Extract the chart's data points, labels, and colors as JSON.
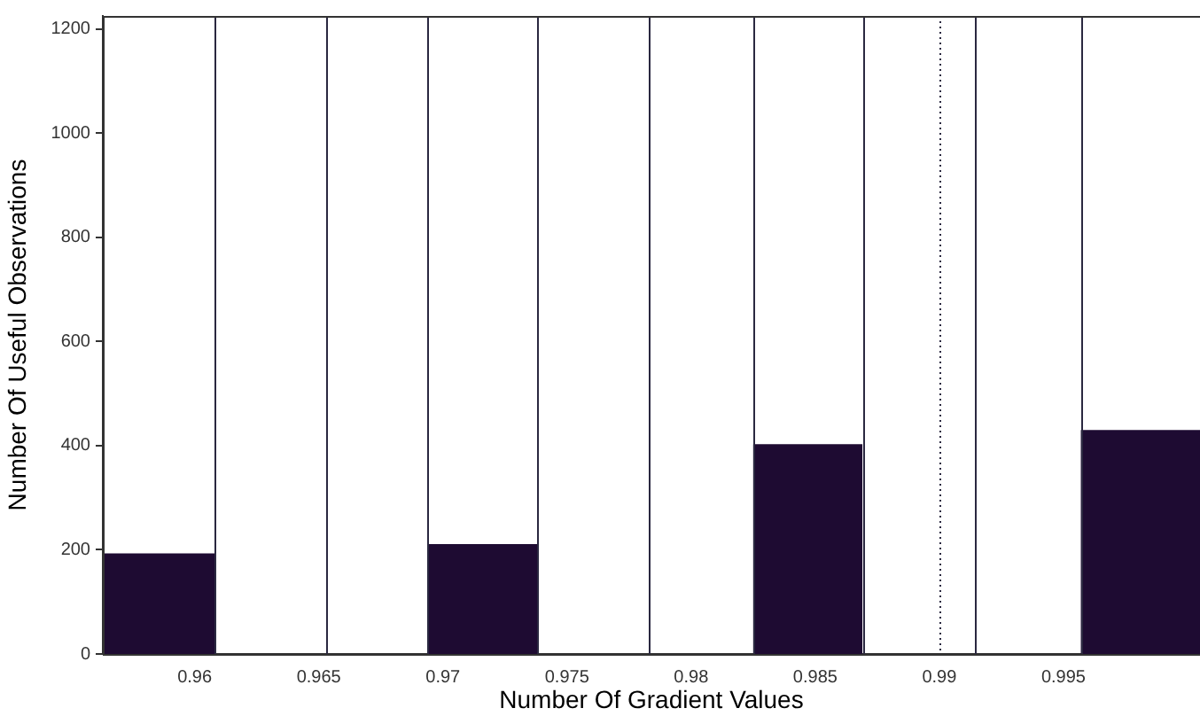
{
  "chart_data": {
    "type": "histogram",
    "xlabel": "Number Of Gradient Values",
    "ylabel": "Number Of Useful Observations",
    "bins": [
      0.9563,
      0.9608,
      0.9694,
      0.9738,
      0.9825,
      0.9869,
      0.9957,
      1.0005
    ],
    "values": [
      193,
      0,
      211,
      0,
      403,
      0,
      430
    ],
    "color": "#1e0b32",
    "xlim": [
      0.9563,
      1.0005
    ],
    "xticks": [
      0.96,
      0.965,
      0.97,
      0.975,
      0.98,
      0.985,
      0.99,
      0.995
    ],
    "ylim": [
      0,
      1225
    ],
    "yticks": [
      0,
      200,
      400,
      600,
      800,
      1000,
      1200
    ],
    "ref_lines": [
      {
        "axis": "x",
        "value": 0.9653,
        "color": "#2a2840"
      },
      {
        "axis": "x",
        "value": 0.9783,
        "color": "#2a2840"
      },
      {
        "axis": "x",
        "value": 0.99,
        "color": "#2a2840",
        "line_style": "dotted"
      },
      {
        "axis": "x",
        "value": 0.9914,
        "color": "#2a2840"
      }
    ],
    "grid": false,
    "legend": false
  }
}
